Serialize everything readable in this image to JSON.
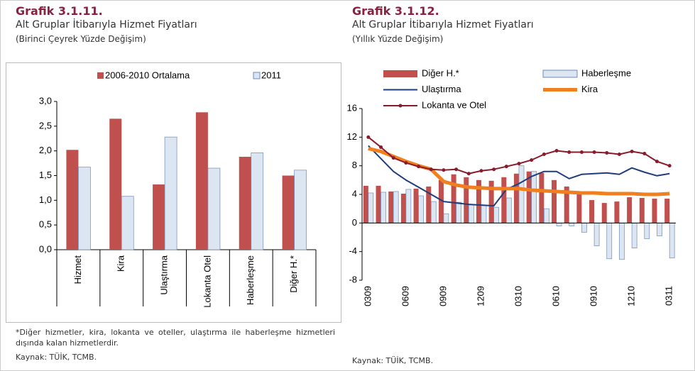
{
  "chart_data": [
    {
      "type": "bar",
      "title": "Grafik 3.1.11.",
      "subtitle": "Alt Gruplar İtibarıyla Hizmet Fiyatları",
      "unit": "(Birinci Çeyrek Yüzde Değişim)",
      "categories": [
        "Hizmet",
        "Kira",
        "Ulaştırma",
        "Lokanta Otel",
        "Haberleşme",
        "Diğer H.*"
      ],
      "series": [
        {
          "name": "2006-2010 Ortalama",
          "color": "#c0504d",
          "values": [
            2.02,
            2.65,
            1.32,
            2.78,
            1.88,
            1.5
          ]
        },
        {
          "name": "2011",
          "color": "#dce6f2",
          "values": [
            1.67,
            1.08,
            2.28,
            1.65,
            1.96,
            1.61
          ]
        }
      ],
      "ylim": [
        0,
        3
      ],
      "yticks": [
        {
          "value": 0,
          "label": "0,0"
        },
        {
          "value": 0.5,
          "label": "0,5"
        },
        {
          "value": 1,
          "label": "1,0"
        },
        {
          "value": 1.5,
          "label": "1,5"
        },
        {
          "value": 2,
          "label": "2,0"
        },
        {
          "value": 2.5,
          "label": "2,5"
        },
        {
          "value": 3,
          "label": "3,0"
        }
      ],
      "note": "*Diğer hizmetler, kira, lokanta ve oteller, ulaştırma ile haberleşme hizmetleri dışında kalan hizmetlerdir.",
      "source": "Kaynak: TÜİK, TCMB."
    },
    {
      "type": "combo",
      "title": "Grafik 3.1.12.",
      "subtitle": "Alt Gruplar İtibarıyla Hizmet Fiyatları",
      "unit": "(Yıllık Yüzde Değişim)",
      "categories": [
        "0309",
        null,
        null,
        "0609",
        null,
        null,
        "0909",
        null,
        null,
        "1209",
        null,
        null,
        "0310",
        null,
        null,
        "0610",
        null,
        null,
        "0910",
        null,
        null,
        "1210",
        null,
        null,
        "0311"
      ],
      "series": [
        {
          "name": "Diğer H.*",
          "type": "bar",
          "color": "#c0504d",
          "values": [
            5.2,
            5.2,
            4.4,
            4.1,
            4.8,
            5.1,
            6.0,
            6.8,
            6.4,
            6.0,
            5.9,
            6.4,
            6.9,
            7.2,
            7.0,
            6.0,
            5.1,
            4.0,
            3.2,
            2.8,
            3.0,
            3.6,
            3.5,
            3.4,
            3.4
          ]
        },
        {
          "name": "Haberleşme",
          "type": "bar",
          "color": "#dce6f2",
          "values": [
            4.2,
            4.3,
            4.4,
            4.7,
            3.8,
            3.0,
            1.3,
            2.9,
            2.6,
            2.5,
            2.2,
            3.5,
            8.0,
            7.2,
            2.0,
            -0.4,
            -0.4,
            -1.3,
            -3.2,
            -5.0,
            -5.1,
            -3.5,
            -2.2,
            -1.8,
            -4.9
          ]
        },
        {
          "name": "Ulaştırma",
          "type": "line",
          "color": "#1f3d7a",
          "width": 2,
          "values": [
            10.8,
            9.0,
            7.2,
            6.0,
            5.0,
            4.0,
            3.0,
            2.8,
            2.6,
            2.5,
            2.4,
            4.7,
            5.5,
            6.5,
            7.2,
            7.2,
            6.2,
            6.8,
            6.9,
            7.0,
            6.8,
            7.7,
            7.1,
            6.6,
            6.9
          ]
        },
        {
          "name": "Kira",
          "type": "line",
          "color": "#f07f1f",
          "width": 5,
          "values": [
            10.4,
            10.0,
            9.3,
            8.6,
            8.0,
            7.5,
            5.8,
            5.3,
            5.0,
            4.9,
            4.8,
            4.8,
            4.8,
            4.6,
            4.5,
            4.4,
            4.3,
            4.2,
            4.2,
            4.1,
            4.1,
            4.1,
            4.0,
            4.0,
            4.1
          ]
        },
        {
          "name": "Lokanta ve Otel",
          "type": "line",
          "marker": "circle",
          "color": "#8b1a2b",
          "width": 2,
          "values": [
            12.0,
            10.6,
            9.1,
            8.4,
            7.9,
            7.5,
            7.4,
            7.5,
            6.9,
            7.3,
            7.5,
            7.9,
            8.3,
            8.8,
            9.6,
            10.1,
            9.9,
            9.9,
            9.9,
            9.8,
            9.6,
            10.0,
            9.7,
            8.6,
            8.0
          ]
        }
      ],
      "ylim": [
        -8,
        16
      ],
      "yticks": [
        -8,
        -4,
        0,
        4,
        8,
        12,
        16
      ],
      "source": "Kaynak: TÜİK, TCMB."
    }
  ]
}
